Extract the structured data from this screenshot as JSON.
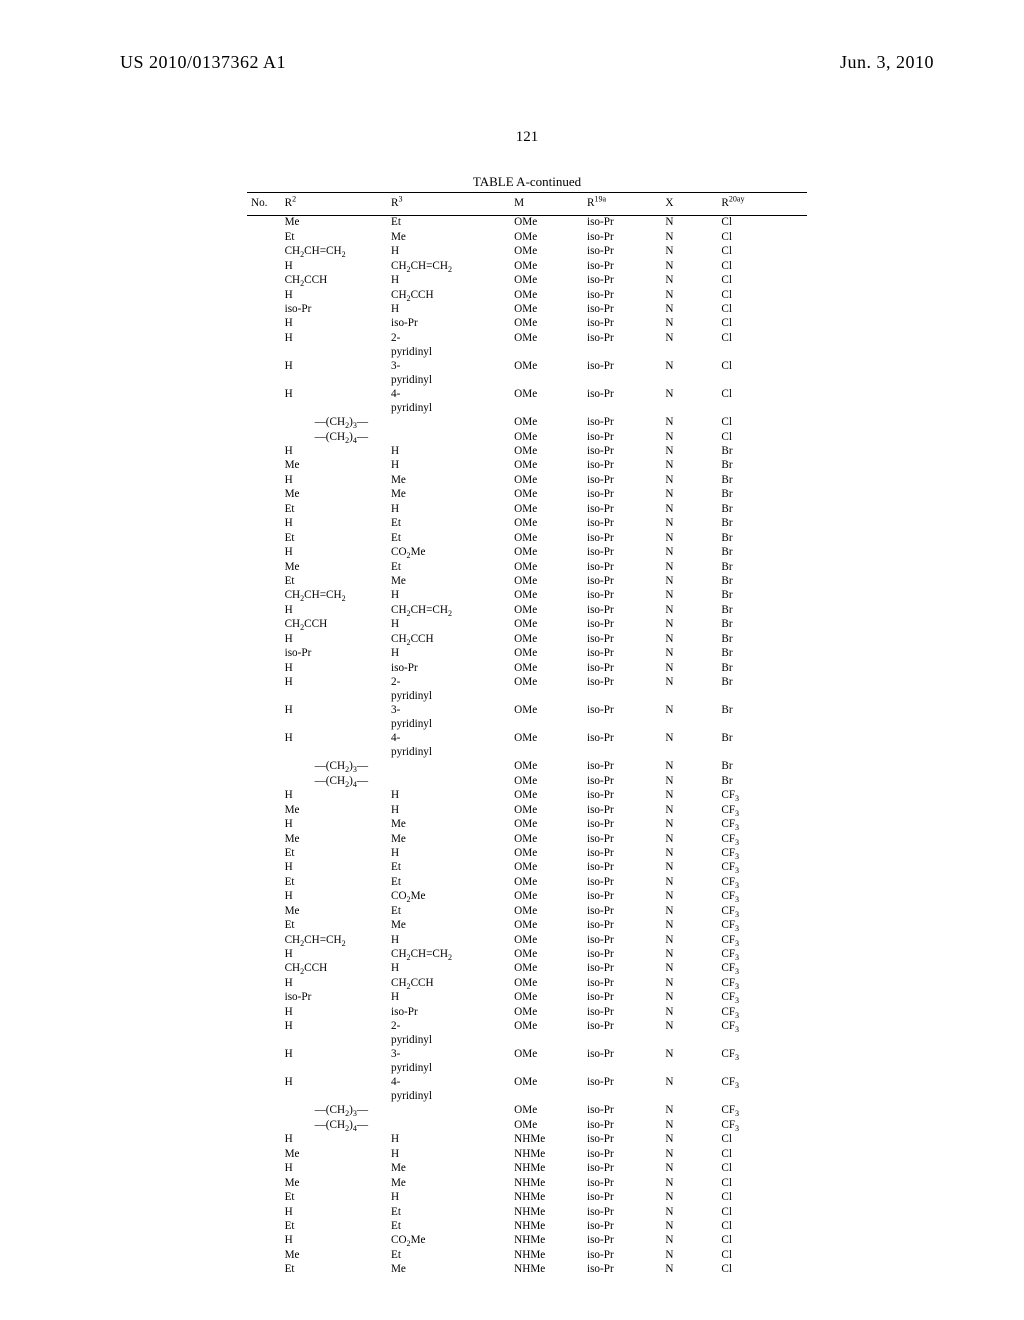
{
  "header": {
    "left": "US 2010/0137362 A1",
    "right": "Jun. 3, 2010"
  },
  "page_number": "121",
  "table": {
    "caption": "TABLE A-continued",
    "columns": [
      "No.",
      "R²",
      "R³",
      "M",
      "R¹⁹ᵃ",
      "X",
      "R²⁰ᵃʸ"
    ],
    "col_html": [
      "No.",
      "R<sup>2</sup>",
      "R<sup>3</sup>",
      "M",
      "R<sup>19a</sup>",
      "X",
      "R<sup>20ay</sup>"
    ],
    "rows": [
      {
        "r2": "Me",
        "r3": "Et",
        "m": "OMe",
        "r19": "iso-Pr",
        "x": "N",
        "r20": "Cl"
      },
      {
        "r2": "Et",
        "r3": "Me",
        "m": "OMe",
        "r19": "iso-Pr",
        "x": "N",
        "r20": "Cl"
      },
      {
        "r2": "CH<sub>2</sub>CH&#61;CH<sub>2</sub>",
        "r3": "H",
        "m": "OMe",
        "r19": "iso-Pr",
        "x": "N",
        "r20": "Cl"
      },
      {
        "r2": "H",
        "r3": "CH<sub>2</sub>CH&#61;CH<sub>2</sub>",
        "m": "OMe",
        "r19": "iso-Pr",
        "x": "N",
        "r20": "Cl"
      },
      {
        "r2": "CH<sub>2</sub>CCH",
        "r3": "H",
        "m": "OMe",
        "r19": "iso-Pr",
        "x": "N",
        "r20": "Cl"
      },
      {
        "r2": "H",
        "r3": "CH<sub>2</sub>CCH",
        "m": "OMe",
        "r19": "iso-Pr",
        "x": "N",
        "r20": "Cl"
      },
      {
        "r2": "iso-Pr",
        "r3": "H",
        "m": "OMe",
        "r19": "iso-Pr",
        "x": "N",
        "r20": "Cl"
      },
      {
        "r2": "H",
        "r3": "iso-Pr",
        "m": "OMe",
        "r19": "iso-Pr",
        "x": "N",
        "r20": "Cl"
      },
      {
        "r2": "H",
        "r3": "2-<br>pyridinyl",
        "m": "OMe",
        "r19": "iso-Pr",
        "x": "N",
        "r20": "Cl"
      },
      {
        "r2": "H",
        "r3": "3-<br>pyridinyl",
        "m": "OMe",
        "r19": "iso-Pr",
        "x": "N",
        "r20": "Cl"
      },
      {
        "r2": "H",
        "r3": "4-<br>pyridinyl",
        "m": "OMe",
        "r19": "iso-Pr",
        "x": "N",
        "r20": "Cl"
      },
      {
        "merged": "&mdash;(CH<sub>2</sub>)<sub>3</sub>&mdash;",
        "m": "OMe",
        "r19": "iso-Pr",
        "x": "N",
        "r20": "Cl"
      },
      {
        "merged": "&mdash;(CH<sub>2</sub>)<sub>4</sub>&mdash;",
        "m": "OMe",
        "r19": "iso-Pr",
        "x": "N",
        "r20": "Cl"
      },
      {
        "r2": "H",
        "r3": "H",
        "m": "OMe",
        "r19": "iso-Pr",
        "x": "N",
        "r20": "Br"
      },
      {
        "r2": "Me",
        "r3": "H",
        "m": "OMe",
        "r19": "iso-Pr",
        "x": "N",
        "r20": "Br"
      },
      {
        "r2": "H",
        "r3": "Me",
        "m": "OMe",
        "r19": "iso-Pr",
        "x": "N",
        "r20": "Br"
      },
      {
        "r2": "Me",
        "r3": "Me",
        "m": "OMe",
        "r19": "iso-Pr",
        "x": "N",
        "r20": "Br"
      },
      {
        "r2": "Et",
        "r3": "H",
        "m": "OMe",
        "r19": "iso-Pr",
        "x": "N",
        "r20": "Br"
      },
      {
        "r2": "H",
        "r3": "Et",
        "m": "OMe",
        "r19": "iso-Pr",
        "x": "N",
        "r20": "Br"
      },
      {
        "r2": "Et",
        "r3": "Et",
        "m": "OMe",
        "r19": "iso-Pr",
        "x": "N",
        "r20": "Br"
      },
      {
        "r2": "H",
        "r3": "CO<sub>2</sub>Me",
        "m": "OMe",
        "r19": "iso-Pr",
        "x": "N",
        "r20": "Br"
      },
      {
        "r2": "Me",
        "r3": "Et",
        "m": "OMe",
        "r19": "iso-Pr",
        "x": "N",
        "r20": "Br"
      },
      {
        "r2": "Et",
        "r3": "Me",
        "m": "OMe",
        "r19": "iso-Pr",
        "x": "N",
        "r20": "Br"
      },
      {
        "r2": "CH<sub>2</sub>CH&#61;CH<sub>2</sub>",
        "r3": "H",
        "m": "OMe",
        "r19": "iso-Pr",
        "x": "N",
        "r20": "Br"
      },
      {
        "r2": "H",
        "r3": "CH<sub>2</sub>CH&#61;CH<sub>2</sub>",
        "m": "OMe",
        "r19": "iso-Pr",
        "x": "N",
        "r20": "Br"
      },
      {
        "r2": "CH<sub>2</sub>CCH",
        "r3": "H",
        "m": "OMe",
        "r19": "iso-Pr",
        "x": "N",
        "r20": "Br"
      },
      {
        "r2": "H",
        "r3": "CH<sub>2</sub>CCH",
        "m": "OMe",
        "r19": "iso-Pr",
        "x": "N",
        "r20": "Br"
      },
      {
        "r2": "iso-Pr",
        "r3": "H",
        "m": "OMe",
        "r19": "iso-Pr",
        "x": "N",
        "r20": "Br"
      },
      {
        "r2": "H",
        "r3": "iso-Pr",
        "m": "OMe",
        "r19": "iso-Pr",
        "x": "N",
        "r20": "Br"
      },
      {
        "r2": "H",
        "r3": "2-<br>pyridinyl",
        "m": "OMe",
        "r19": "iso-Pr",
        "x": "N",
        "r20": "Br"
      },
      {
        "r2": "H",
        "r3": "3-<br>pyridinyl",
        "m": "OMe",
        "r19": "iso-Pr",
        "x": "N",
        "r20": "Br"
      },
      {
        "r2": "H",
        "r3": "4-<br>pyridinyl",
        "m": "OMe",
        "r19": "iso-Pr",
        "x": "N",
        "r20": "Br"
      },
      {
        "merged": "&mdash;(CH<sub>2</sub>)<sub>3</sub>&mdash;",
        "m": "OMe",
        "r19": "iso-Pr",
        "x": "N",
        "r20": "Br"
      },
      {
        "merged": "&mdash;(CH<sub>2</sub>)<sub>4</sub>&mdash;",
        "m": "OMe",
        "r19": "iso-Pr",
        "x": "N",
        "r20": "Br"
      },
      {
        "r2": "H",
        "r3": "H",
        "m": "OMe",
        "r19": "iso-Pr",
        "x": "N",
        "r20": "CF<sub>3</sub>"
      },
      {
        "r2": "Me",
        "r3": "H",
        "m": "OMe",
        "r19": "iso-Pr",
        "x": "N",
        "r20": "CF<sub>3</sub>"
      },
      {
        "r2": "H",
        "r3": "Me",
        "m": "OMe",
        "r19": "iso-Pr",
        "x": "N",
        "r20": "CF<sub>3</sub>"
      },
      {
        "r2": "Me",
        "r3": "Me",
        "m": "OMe",
        "r19": "iso-Pr",
        "x": "N",
        "r20": "CF<sub>3</sub>"
      },
      {
        "r2": "Et",
        "r3": "H",
        "m": "OMe",
        "r19": "iso-Pr",
        "x": "N",
        "r20": "CF<sub>3</sub>"
      },
      {
        "r2": "H",
        "r3": "Et",
        "m": "OMe",
        "r19": "iso-Pr",
        "x": "N",
        "r20": "CF<sub>3</sub>"
      },
      {
        "r2": "Et",
        "r3": "Et",
        "m": "OMe",
        "r19": "iso-Pr",
        "x": "N",
        "r20": "CF<sub>3</sub>"
      },
      {
        "r2": "H",
        "r3": "CO<sub>2</sub>Me",
        "m": "OMe",
        "r19": "iso-Pr",
        "x": "N",
        "r20": "CF<sub>3</sub>"
      },
      {
        "r2": "Me",
        "r3": "Et",
        "m": "OMe",
        "r19": "iso-Pr",
        "x": "N",
        "r20": "CF<sub>3</sub>"
      },
      {
        "r2": "Et",
        "r3": "Me",
        "m": "OMe",
        "r19": "iso-Pr",
        "x": "N",
        "r20": "CF<sub>3</sub>"
      },
      {
        "r2": "CH<sub>2</sub>CH&#61;CH<sub>2</sub>",
        "r3": "H",
        "m": "OMe",
        "r19": "iso-Pr",
        "x": "N",
        "r20": "CF<sub>3</sub>"
      },
      {
        "r2": "H",
        "r3": "CH<sub>2</sub>CH&#61;CH<sub>2</sub>",
        "m": "OMe",
        "r19": "iso-Pr",
        "x": "N",
        "r20": "CF<sub>3</sub>"
      },
      {
        "r2": "CH<sub>2</sub>CCH",
        "r3": "H",
        "m": "OMe",
        "r19": "iso-Pr",
        "x": "N",
        "r20": "CF<sub>3</sub>"
      },
      {
        "r2": "H",
        "r3": "CH<sub>2</sub>CCH",
        "m": "OMe",
        "r19": "iso-Pr",
        "x": "N",
        "r20": "CF<sub>3</sub>"
      },
      {
        "r2": "iso-Pr",
        "r3": "H",
        "m": "OMe",
        "r19": "iso-Pr",
        "x": "N",
        "r20": "CF<sub>3</sub>"
      },
      {
        "r2": "H",
        "r3": "iso-Pr",
        "m": "OMe",
        "r19": "iso-Pr",
        "x": "N",
        "r20": "CF<sub>3</sub>"
      },
      {
        "r2": "H",
        "r3": "2-<br>pyridinyl",
        "m": "OMe",
        "r19": "iso-Pr",
        "x": "N",
        "r20": "CF<sub>3</sub>"
      },
      {
        "r2": "H",
        "r3": "3-<br>pyridinyl",
        "m": "OMe",
        "r19": "iso-Pr",
        "x": "N",
        "r20": "CF<sub>3</sub>"
      },
      {
        "r2": "H",
        "r3": "4-<br>pyridinyl",
        "m": "OMe",
        "r19": "iso-Pr",
        "x": "N",
        "r20": "CF<sub>3</sub>"
      },
      {
        "merged": "&mdash;(CH<sub>2</sub>)<sub>3</sub>&mdash;",
        "m": "OMe",
        "r19": "iso-Pr",
        "x": "N",
        "r20": "CF<sub>3</sub>"
      },
      {
        "merged": "&mdash;(CH<sub>2</sub>)<sub>4</sub>&mdash;",
        "m": "OMe",
        "r19": "iso-Pr",
        "x": "N",
        "r20": "CF<sub>3</sub>"
      },
      {
        "r2": "H",
        "r3": "H",
        "m": "NHMe",
        "r19": "iso-Pr",
        "x": "N",
        "r20": "Cl"
      },
      {
        "r2": "Me",
        "r3": "H",
        "m": "NHMe",
        "r19": "iso-Pr",
        "x": "N",
        "r20": "Cl"
      },
      {
        "r2": "H",
        "r3": "Me",
        "m": "NHMe",
        "r19": "iso-Pr",
        "x": "N",
        "r20": "Cl"
      },
      {
        "r2": "Me",
        "r3": "Me",
        "m": "NHMe",
        "r19": "iso-Pr",
        "x": "N",
        "r20": "Cl"
      },
      {
        "r2": "Et",
        "r3": "H",
        "m": "NHMe",
        "r19": "iso-Pr",
        "x": "N",
        "r20": "Cl"
      },
      {
        "r2": "H",
        "r3": "Et",
        "m": "NHMe",
        "r19": "iso-Pr",
        "x": "N",
        "r20": "Cl"
      },
      {
        "r2": "Et",
        "r3": "Et",
        "m": "NHMe",
        "r19": "iso-Pr",
        "x": "N",
        "r20": "Cl"
      },
      {
        "r2": "H",
        "r3": "CO<sub>2</sub>Me",
        "m": "NHMe",
        "r19": "iso-Pr",
        "x": "N",
        "r20": "Cl"
      },
      {
        "r2": "Me",
        "r3": "Et",
        "m": "NHMe",
        "r19": "iso-Pr",
        "x": "N",
        "r20": "Cl"
      },
      {
        "r2": "Et",
        "r3": "Me",
        "m": "NHMe",
        "r19": "iso-Pr",
        "x": "N",
        "r20": "Cl"
      }
    ]
  }
}
